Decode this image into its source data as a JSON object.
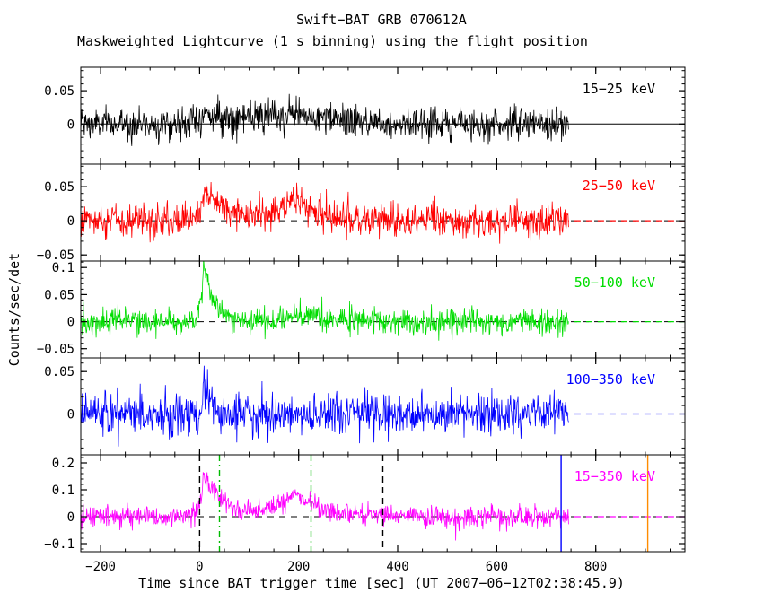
{
  "chart_data": {
    "type": "line",
    "title": "Swift−BAT GRB 070612A",
    "subtitle": "Maskweighted Lightcurve (1 s binning) using the flight position",
    "xlabel": "Time since BAT trigger time [sec] (UT 2007−06−12T02:38:45.9)",
    "ylabel": "Counts/sec/det",
    "x": {
      "lim": [
        -240,
        980
      ],
      "ticks": [
        {
          "v": -200,
          "label": "−200"
        },
        {
          "v": 0,
          "label": "0"
        },
        {
          "v": 200,
          "label": "200"
        },
        {
          "v": 400,
          "label": "400"
        },
        {
          "v": 600,
          "label": "600"
        },
        {
          "v": 800,
          "label": "800"
        }
      ],
      "minor_step": 50,
      "data_start": -240,
      "data_end": 745,
      "binning_sec": 1
    },
    "panels": [
      {
        "name": "15−25 keV",
        "color": "#000000",
        "ylim": [
          -0.06,
          0.085
        ],
        "yticks": [
          {
            "v": 0,
            "label": "0"
          },
          {
            "v": 0.05,
            "label": "0.05"
          }
        ],
        "yminor": 0.01,
        "zero_line": {
          "style": "solid",
          "overhang_color": null
        },
        "model": {
          "noise_sigma": 0.012,
          "bursts": [
            {
              "t0": 10,
              "rise": 25,
              "decay": 130,
              "amp": 0.013
            },
            {
              "t0": 190,
              "rise": 50,
              "decay": 80,
              "amp": 0.013
            }
          ]
        }
      },
      {
        "name": "25−50 keV",
        "color": "#ff0000",
        "ylim": [
          -0.059,
          0.083
        ],
        "yticks": [
          {
            "v": -0.05,
            "label": "−0.05"
          },
          {
            "v": 0,
            "label": "0"
          },
          {
            "v": 0.05,
            "label": "0.05"
          }
        ],
        "yminor": 0.01,
        "zero_line": {
          "style": "dashed",
          "overhang_color": "#ff0000"
        },
        "model": {
          "noise_sigma": 0.012,
          "bursts": [
            {
              "t0": 8,
              "rise": 6,
              "decay": 45,
              "amp": 0.05
            },
            {
              "t0": 190,
              "rise": 35,
              "decay": 55,
              "amp": 0.032
            }
          ]
        }
      },
      {
        "name": "50−100 keV",
        "color": "#00dd00",
        "ylim": [
          -0.067,
          0.112
        ],
        "yticks": [
          {
            "v": -0.05,
            "label": "−0.05"
          },
          {
            "v": 0,
            "label": "0"
          },
          {
            "v": 0.05,
            "label": "0.05"
          },
          {
            "v": 0.1,
            "label": "0.1"
          }
        ],
        "yminor": 0.01,
        "zero_line": {
          "style": "dashed",
          "overhang_color": "#00dd00"
        },
        "model": {
          "noise_sigma": 0.012,
          "bursts": [
            {
              "t0": 8,
              "rise": 5,
              "decay": 22,
              "amp": 0.1
            },
            {
              "t0": 195,
              "rise": 40,
              "decay": 50,
              "amp": 0.015
            }
          ]
        }
      },
      {
        "name": "100−350 keV",
        "color": "#0000ff",
        "ylim": [
          -0.048,
          0.066
        ],
        "yticks": [
          {
            "v": 0,
            "label": "0"
          },
          {
            "v": 0.05,
            "label": "0.05"
          }
        ],
        "yminor": 0.01,
        "zero_line": {
          "style": "solid",
          "overhang_color": "#0000ff"
        },
        "model": {
          "noise_sigma": 0.012,
          "bursts": [
            {
              "t0": 8,
              "rise": 3,
              "decay": 13,
              "amp": 0.045
            }
          ]
        }
      },
      {
        "name": "15−350 keV",
        "color": "#ff00ff",
        "ylim": [
          -0.13,
          0.23
        ],
        "yticks": [
          {
            "v": -0.1,
            "label": "−0.1"
          },
          {
            "v": 0,
            "label": "0"
          },
          {
            "v": 0.1,
            "label": "0.1"
          },
          {
            "v": 0.2,
            "label": "0.2"
          }
        ],
        "yminor": 0.02,
        "zero_line": {
          "style": "dashed",
          "overhang_color": "#ff00ff"
        },
        "model": {
          "noise_sigma": 0.02,
          "bursts": [
            {
              "t0": 8,
              "rise": 6,
              "decay": 38,
              "amp": 0.165
            },
            {
              "t0": 192,
              "rise": 38,
              "decay": 55,
              "amp": 0.09
            }
          ]
        }
      }
    ],
    "vlines": [
      {
        "t": 0,
        "color": "#000000",
        "style": "dashed",
        "name": "trigger-time-line"
      },
      {
        "t": 40,
        "color": "#00bb00",
        "style": "dashdot",
        "name": "interval-start-line"
      },
      {
        "t": 225,
        "color": "#00bb00",
        "style": "dashdot",
        "name": "interval-end-line"
      },
      {
        "t": 370,
        "color": "#000000",
        "style": "dashed",
        "name": "t90-end-line"
      },
      {
        "t": 730,
        "color": "#0000ff",
        "style": "solid",
        "name": "data-end-marker-line"
      },
      {
        "t": 905,
        "color": "#ff8c00",
        "style": "solid",
        "name": "slew-marker-line"
      }
    ]
  }
}
